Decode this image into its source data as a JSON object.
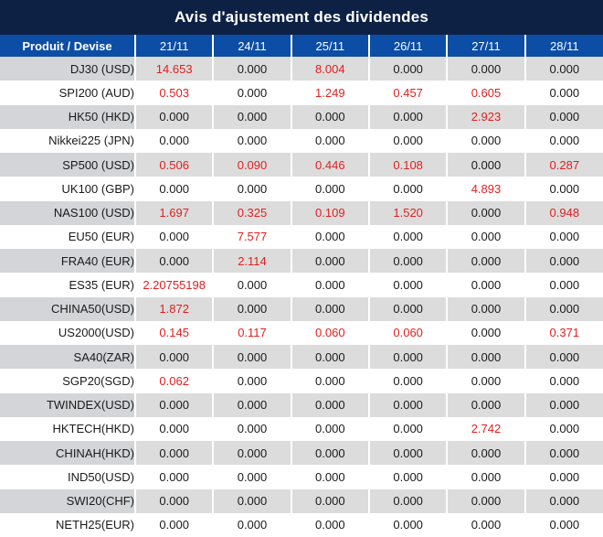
{
  "title": "Avis d'ajustement des dividendes",
  "colors": {
    "title_bar_bg": "#0d2145",
    "header_bg": "#0c4da6",
    "header_text": "#ffffff",
    "stripe_product_bg": "#d3d5d8",
    "stripe_value_bg": "#dcdcdc",
    "white_row_bg": "#ffffff",
    "value_text": "#1a1a1a",
    "nonzero_value_text": "#e01f1f"
  },
  "chart_data": {
    "type": "table",
    "title": "Avis d'ajustement des dividendes",
    "product_header": "Produit / Devise",
    "columns": [
      "21/11",
      "24/11",
      "25/11",
      "26/11",
      "27/11",
      "28/11"
    ],
    "rows": [
      {
        "product": "DJ30 (USD)",
        "values": [
          "14.653",
          "0.000",
          "8.004",
          "0.000",
          "0.000",
          "0.000"
        ]
      },
      {
        "product": "SPI200 (AUD)",
        "values": [
          "0.503",
          "0.000",
          "1.249",
          "0.457",
          "0.605",
          "0.000"
        ]
      },
      {
        "product": "HK50 (HKD)",
        "values": [
          "0.000",
          "0.000",
          "0.000",
          "0.000",
          "2.923",
          "0.000"
        ]
      },
      {
        "product": "Nikkei225 (JPN)",
        "values": [
          "0.000",
          "0.000",
          "0.000",
          "0.000",
          "0.000",
          "0.000"
        ]
      },
      {
        "product": "SP500 (USD)",
        "values": [
          "0.506",
          "0.090",
          "0.446",
          "0.108",
          "0.000",
          "0.287"
        ]
      },
      {
        "product": "UK100 (GBP)",
        "values": [
          "0.000",
          "0.000",
          "0.000",
          "0.000",
          "4.893",
          "0.000"
        ]
      },
      {
        "product": "NAS100 (USD)",
        "values": [
          "1.697",
          "0.325",
          "0.109",
          "1.520",
          "0.000",
          "0.948"
        ]
      },
      {
        "product": "EU50 (EUR)",
        "values": [
          "0.000",
          "7.577",
          "0.000",
          "0.000",
          "0.000",
          "0.000"
        ]
      },
      {
        "product": "FRA40 (EUR)",
        "values": [
          "0.000",
          "2.114",
          "0.000",
          "0.000",
          "0.000",
          "0.000"
        ]
      },
      {
        "product": "ES35 (EUR)",
        "values": [
          "2.20755198",
          "0.000",
          "0.000",
          "0.000",
          "0.000",
          "0.000"
        ]
      },
      {
        "product": "CHINA50(USD)",
        "values": [
          "1.872",
          "0.000",
          "0.000",
          "0.000",
          "0.000",
          "0.000"
        ]
      },
      {
        "product": "US2000(USD)",
        "values": [
          "0.145",
          "0.117",
          "0.060",
          "0.060",
          "0.000",
          "0.371"
        ]
      },
      {
        "product": "SA40(ZAR)",
        "values": [
          "0.000",
          "0.000",
          "0.000",
          "0.000",
          "0.000",
          "0.000"
        ]
      },
      {
        "product": "SGP20(SGD)",
        "values": [
          "0.062",
          "0.000",
          "0.000",
          "0.000",
          "0.000",
          "0.000"
        ]
      },
      {
        "product": "TWINDEX(USD)",
        "values": [
          "0.000",
          "0.000",
          "0.000",
          "0.000",
          "0.000",
          "0.000"
        ]
      },
      {
        "product": "HKTECH(HKD)",
        "values": [
          "0.000",
          "0.000",
          "0.000",
          "0.000",
          "2.742",
          "0.000"
        ]
      },
      {
        "product": "CHINAH(HKD)",
        "values": [
          "0.000",
          "0.000",
          "0.000",
          "0.000",
          "0.000",
          "0.000"
        ]
      },
      {
        "product": "IND50(USD)",
        "values": [
          "0.000",
          "0.000",
          "0.000",
          "0.000",
          "0.000",
          "0.000"
        ]
      },
      {
        "product": "SWI20(CHF)",
        "values": [
          "0.000",
          "0.000",
          "0.000",
          "0.000",
          "0.000",
          "0.000"
        ]
      },
      {
        "product": "NETH25(EUR)",
        "values": [
          "0.000",
          "0.000",
          "0.000",
          "0.000",
          "0.000",
          "0.000"
        ]
      }
    ]
  }
}
